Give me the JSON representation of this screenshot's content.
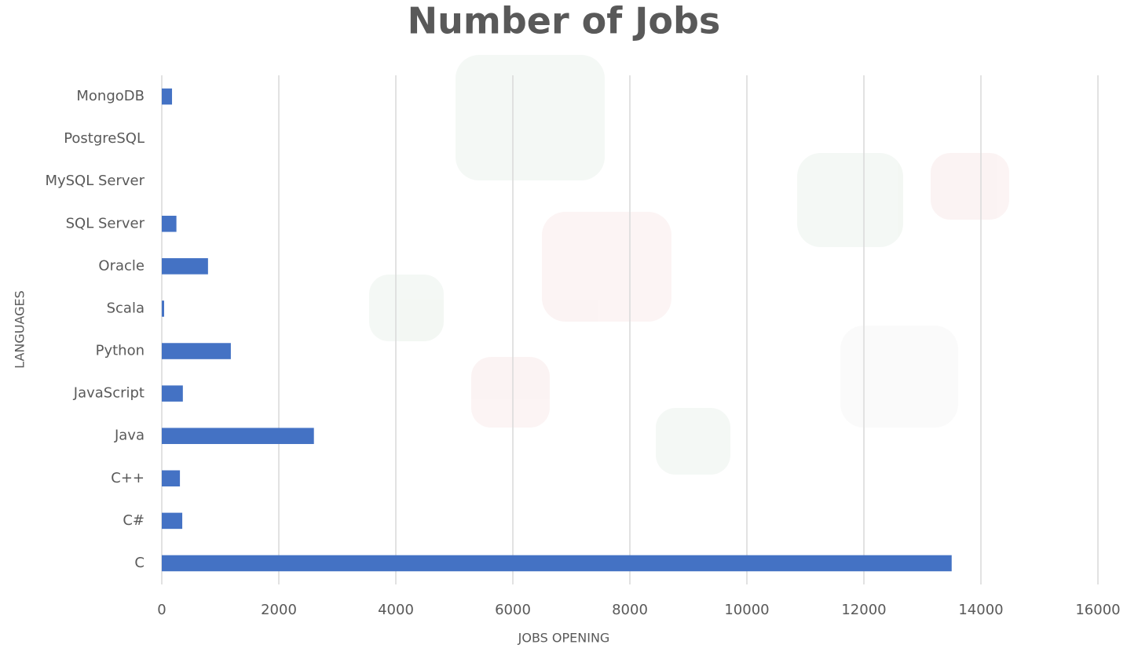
{
  "chart_data": {
    "type": "barh",
    "title": "Number of Jobs",
    "x_label": "JOBS OPENING",
    "y_label": "LANGUAGES",
    "categories": [
      "C",
      "C#",
      "C++",
      "Java",
      "JavaScript",
      "Python",
      "Scala",
      "Oracle",
      "SQL Server",
      "MySQL Server",
      "PostgreSQL",
      "MongoDB"
    ],
    "values": [
      13500,
      350,
      310,
      2600,
      360,
      1180,
      40,
      790,
      250,
      0,
      0,
      175
    ],
    "color": "#4472c4",
    "xlim": [
      0,
      16000
    ],
    "xticks": [
      0,
      2000,
      4000,
      6000,
      8000,
      10000,
      12000,
      14000,
      16000
    ],
    "grid": true
  }
}
